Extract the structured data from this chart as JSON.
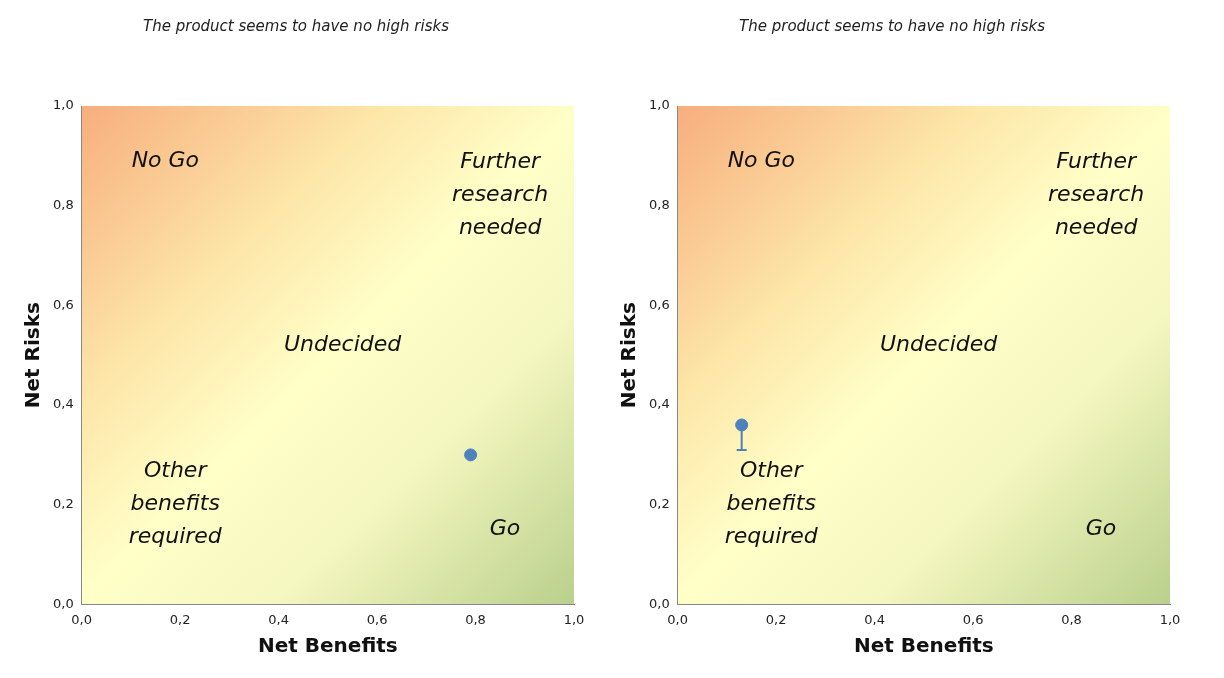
{
  "chart_data": [
    {
      "type": "scatter",
      "title": "The product seems to have no high risks",
      "xlabel": "Net Benefits",
      "ylabel": "Net Risks",
      "x": [
        0.79
      ],
      "values": [
        0.3
      ],
      "color": "#4f81bd",
      "marker": "circle",
      "xlim": [
        0,
        1
      ],
      "ylim": [
        0,
        1
      ],
      "xticks": [
        {
          "value": 0,
          "label": "0,0"
        },
        {
          "value": 0.2,
          "label": "0,2"
        },
        {
          "value": 0.4,
          "label": "0,4"
        },
        {
          "value": 0.6,
          "label": "0,6"
        },
        {
          "value": 0.8,
          "label": "0,8"
        },
        {
          "value": 1,
          "label": "1,0"
        }
      ],
      "yticks": [
        {
          "value": 0,
          "label": "0,0"
        },
        {
          "value": 0.2,
          "label": "0,2"
        },
        {
          "value": 0.4,
          "label": "0,4"
        },
        {
          "value": 0.6,
          "label": "0,6"
        },
        {
          "value": 0.8,
          "label": "0,8"
        },
        {
          "value": 1,
          "label": "1,0"
        }
      ],
      "annotations": [
        "No Go",
        "Further research needed",
        "Undecided",
        "Other benefits required",
        "Go"
      ],
      "grid": false,
      "legend": false
    },
    {
      "type": "scatter",
      "title": "The product seems to have no high risks",
      "xlabel": "Net Benefits",
      "ylabel": "Net Risks",
      "x": [
        0.13
      ],
      "values": [
        0.36
      ],
      "errors": [
        [
          0.31,
          0.36
        ]
      ],
      "color": "#4f81bd",
      "marker": "circle",
      "xlim": [
        0,
        1
      ],
      "ylim": [
        0,
        1
      ],
      "xticks": [
        {
          "value": 0,
          "label": "0,0"
        },
        {
          "value": 0.2,
          "label": "0,2"
        },
        {
          "value": 0.4,
          "label": "0,4"
        },
        {
          "value": 0.6,
          "label": "0,6"
        },
        {
          "value": 0.8,
          "label": "0,8"
        },
        {
          "value": 1,
          "label": "1,0"
        }
      ],
      "yticks": [
        {
          "value": 0,
          "label": "0,0"
        },
        {
          "value": 0.2,
          "label": "0,2"
        },
        {
          "value": 0.4,
          "label": "0,4"
        },
        {
          "value": 0.6,
          "label": "0,6"
        },
        {
          "value": 0.8,
          "label": "0,8"
        },
        {
          "value": 1,
          "label": "1,0"
        }
      ],
      "annotations": [
        "No Go",
        "Further research needed",
        "Undecided",
        "Other benefits required",
        "Go"
      ],
      "grid": false,
      "legend": false
    }
  ]
}
